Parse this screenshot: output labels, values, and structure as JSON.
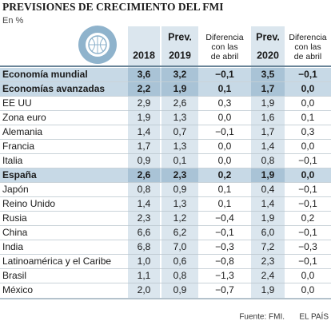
{
  "header": {
    "title": "PREVISIONES DE CRECIMIENTO DEL FMI",
    "subtitle": "En %"
  },
  "table": {
    "columns": [
      {
        "lines": [
          "2018"
        ],
        "shaded": true
      },
      {
        "lines": [
          "Prev.",
          "2019"
        ],
        "shaded": true
      },
      {
        "lines": [
          "Diferencia",
          "con las",
          "de abril"
        ],
        "shaded": false
      },
      {
        "lines": [
          "Prev.",
          "2020"
        ],
        "shaded": true
      },
      {
        "lines": [
          "Diferencia",
          "con las",
          "de abril"
        ],
        "shaded": false
      }
    ],
    "rows": [
      {
        "label": "Economía mundial",
        "highlight": true,
        "cells": [
          "3,6",
          "3,2",
          "−0,1",
          "3,5",
          "−0,1"
        ]
      },
      {
        "label": "Economías avanzadas",
        "highlight": true,
        "cells": [
          "2,2",
          "1,9",
          "0,1",
          "1,7",
          "0,0"
        ]
      },
      {
        "label": "EE UU",
        "highlight": false,
        "cells": [
          "2,9",
          "2,6",
          "0,3",
          "1,9",
          "0,0"
        ]
      },
      {
        "label": "Zona euro",
        "highlight": false,
        "cells": [
          "1,9",
          "1,3",
          "0,0",
          "1,6",
          "0,1"
        ]
      },
      {
        "label": "Alemania",
        "highlight": false,
        "cells": [
          "1,4",
          "0,7",
          "−0,1",
          "1,7",
          "0,3"
        ]
      },
      {
        "label": "Francia",
        "highlight": false,
        "cells": [
          "1,7",
          "1,3",
          "0,0",
          "1,4",
          "0,0"
        ]
      },
      {
        "label": "Italia",
        "highlight": false,
        "cells": [
          "0,9",
          "0,1",
          "0,0",
          "0,8",
          "−0,1"
        ]
      },
      {
        "label": "España",
        "highlight": true,
        "cells": [
          "2,6",
          "2,3",
          "0,2",
          "1,9",
          "0,0"
        ]
      },
      {
        "label": "Japón",
        "highlight": false,
        "cells": [
          "0,8",
          "0,9",
          "0,1",
          "0,4",
          "−0,1"
        ]
      },
      {
        "label": "Reino Unido",
        "highlight": false,
        "cells": [
          "1,4",
          "1,3",
          "0,1",
          "1,4",
          "−0,1"
        ]
      },
      {
        "label": "Rusia",
        "highlight": false,
        "cells": [
          "2,3",
          "1,2",
          "−0,4",
          "1,9",
          "0,2"
        ]
      },
      {
        "label": "China",
        "highlight": false,
        "cells": [
          "6,6",
          "6,2",
          "−0,1",
          "6,0",
          "−0,1"
        ]
      },
      {
        "label": "India",
        "highlight": false,
        "cells": [
          "6,8",
          "7,0",
          "−0,3",
          "7,2",
          "−0,3"
        ]
      },
      {
        "label": "Latinoamérica y el Caribe",
        "highlight": false,
        "cells": [
          "1,0",
          "0,6",
          "−0,8",
          "2,3",
          "−0,1"
        ]
      },
      {
        "label": "Brasil",
        "highlight": false,
        "cells": [
          "1,1",
          "0,8",
          "−1,3",
          "2,4",
          "0,0"
        ]
      },
      {
        "label": "México",
        "highlight": false,
        "cells": [
          "2,0",
          "0,9",
          "−0,7",
          "1,9",
          "0,0"
        ]
      }
    ]
  },
  "footer": {
    "source": "Fuente: FMI.",
    "brand": "EL PAÍS"
  }
}
